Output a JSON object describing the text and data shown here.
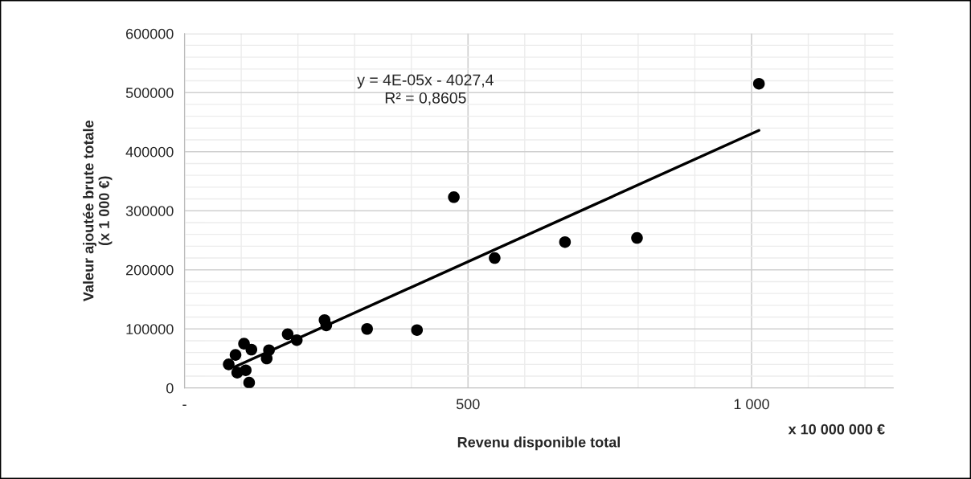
{
  "chart_data": {
    "type": "scatter",
    "xlabel": "Revenu disponible total",
    "ylabel": "Valeur ajoutée brute totale\n(x 1 000 €)",
    "annotations": [
      "y = 4E-05x - 4027,4\nR² = 0,8605",
      "x 10 000 000 €"
    ],
    "series": [
      {
        "color": "#000000",
        "marker": "circle",
        "x": [
          78,
          90,
          93,
          105,
          108,
          118,
          114,
          149,
          145,
          182,
          198,
          247,
          250,
          322,
          410,
          475,
          547,
          671,
          798,
          1013
        ],
        "values": [
          40000,
          56000,
          26000,
          75000,
          30000,
          65000,
          9000,
          64000,
          50000,
          91000,
          81000,
          115000,
          106000,
          100000,
          98000,
          323000,
          220000,
          247000,
          254000,
          515000
        ]
      },
      {
        "type": "line",
        "color": "#000000",
        "line_style": "solid",
        "marker": "none",
        "x": [
          87,
          1013
        ],
        "values": [
          35000,
          436000
        ]
      }
    ],
    "xlim": [
      0,
      1250
    ],
    "xticks": [
      {
        "value": 0,
        "label": "-"
      },
      500,
      {
        "value": 1000,
        "label": "1 000"
      }
    ],
    "ylim": [
      0,
      600000
    ],
    "yticks": [
      0,
      100000,
      200000,
      300000,
      400000,
      500000,
      600000
    ],
    "grid": true,
    "legend": false
  }
}
